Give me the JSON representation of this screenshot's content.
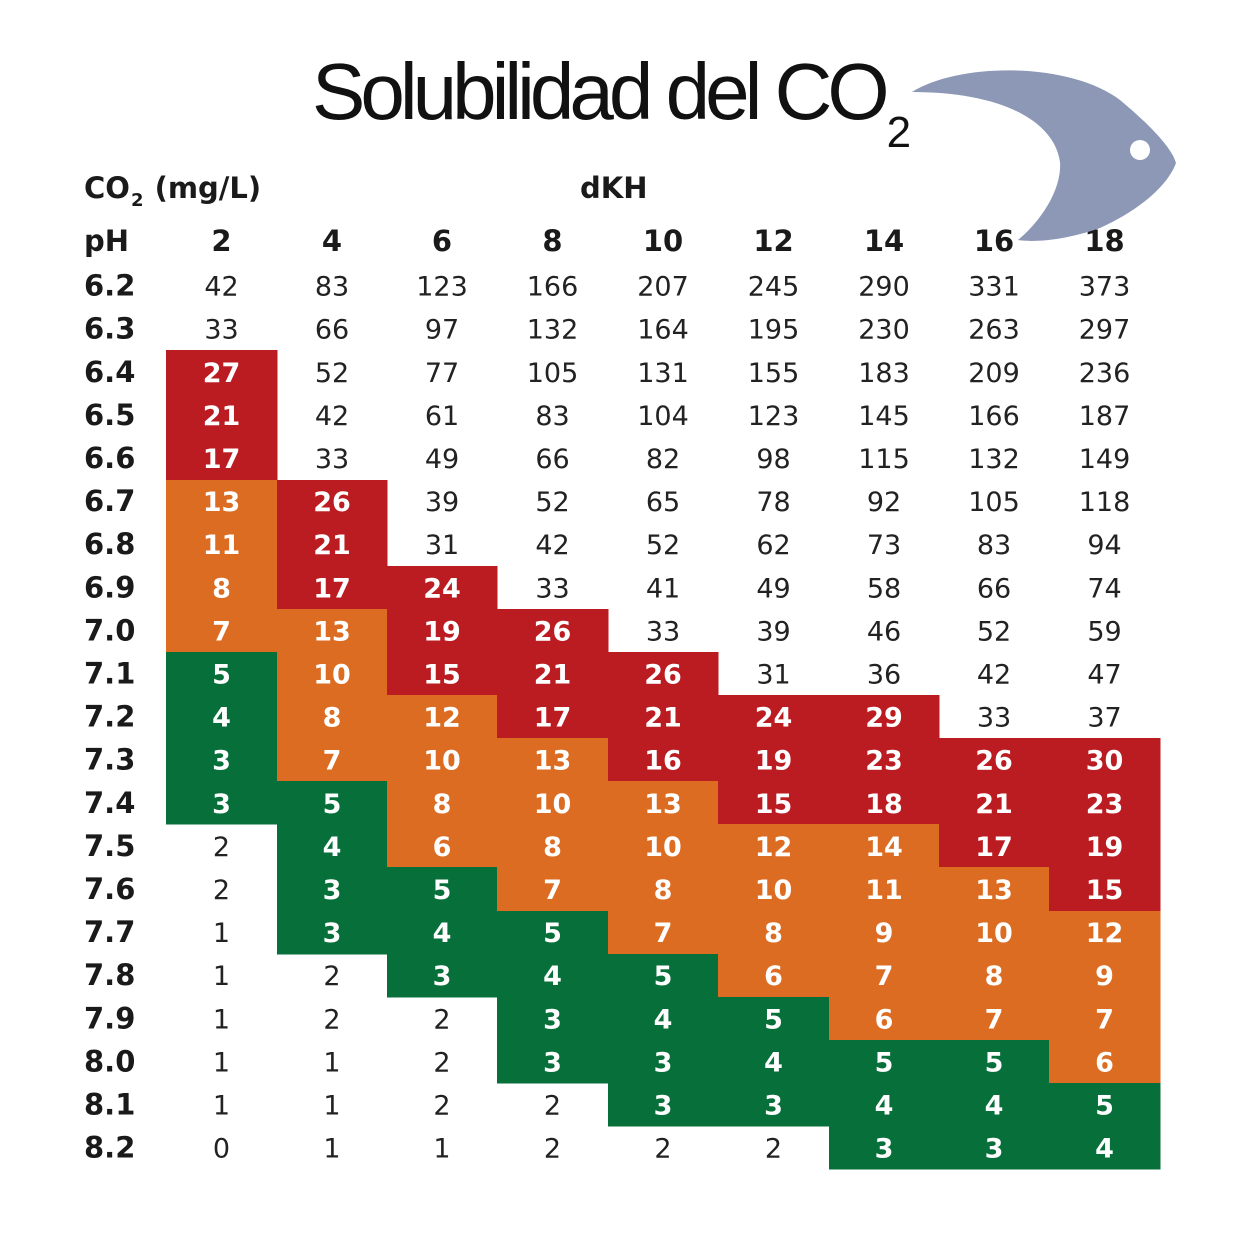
{
  "title": {
    "text": "Solubilidad del CO",
    "subscript": "2"
  },
  "headers": {
    "unit_prefix": "CO",
    "unit_sub": "2",
    "unit_suffix": " (mg/L)",
    "column_group": "dKH",
    "row_label": "pH"
  },
  "logo": {
    "icon": "fish-icon"
  },
  "colors": {
    "red": "#bb1c21",
    "orange": "#dc6c22",
    "green": "#07703a",
    "none": "#ffffff",
    "text_dark": "#222222",
    "text_light": "#ffffff",
    "fish": "#8c98b6"
  },
  "chart_data": {
    "type": "table",
    "title": "Solubilidad del CO2",
    "xlabel": "dKH",
    "ylabel": "pH",
    "unit": "CO2 (mg/L)",
    "columns": [
      "2",
      "4",
      "6",
      "8",
      "10",
      "12",
      "14",
      "16",
      "18"
    ],
    "rows": [
      "6.2",
      "6.3",
      "6.4",
      "6.5",
      "6.6",
      "6.7",
      "6.8",
      "6.9",
      "7.0",
      "7.1",
      "7.2",
      "7.3",
      "7.4",
      "7.5",
      "7.6",
      "7.7",
      "7.8",
      "7.9",
      "8.0",
      "8.1",
      "8.2"
    ],
    "values": [
      [
        42,
        83,
        123,
        166,
        207,
        245,
        290,
        331,
        373
      ],
      [
        33,
        66,
        97,
        132,
        164,
        195,
        230,
        263,
        297
      ],
      [
        27,
        52,
        77,
        105,
        131,
        155,
        183,
        209,
        236
      ],
      [
        21,
        42,
        61,
        83,
        104,
        123,
        145,
        166,
        187
      ],
      [
        17,
        33,
        49,
        66,
        82,
        98,
        115,
        132,
        149
      ],
      [
        13,
        26,
        39,
        52,
        65,
        78,
        92,
        105,
        118
      ],
      [
        11,
        21,
        31,
        42,
        52,
        62,
        73,
        83,
        94
      ],
      [
        8,
        17,
        24,
        33,
        41,
        49,
        58,
        66,
        74
      ],
      [
        7,
        13,
        19,
        26,
        33,
        39,
        46,
        52,
        59
      ],
      [
        5,
        10,
        15,
        21,
        26,
        31,
        36,
        42,
        47
      ],
      [
        4,
        8,
        12,
        17,
        21,
        24,
        29,
        33,
        37
      ],
      [
        3,
        7,
        10,
        13,
        16,
        19,
        23,
        26,
        30
      ],
      [
        3,
        5,
        8,
        10,
        13,
        15,
        18,
        21,
        23
      ],
      [
        2,
        4,
        6,
        8,
        10,
        12,
        14,
        17,
        19
      ],
      [
        2,
        3,
        5,
        7,
        8,
        10,
        11,
        13,
        15
      ],
      [
        1,
        3,
        4,
        5,
        7,
        8,
        9,
        10,
        12
      ],
      [
        1,
        2,
        3,
        4,
        5,
        6,
        7,
        8,
        9
      ],
      [
        1,
        2,
        2,
        3,
        4,
        5,
        6,
        7,
        7
      ],
      [
        1,
        1,
        2,
        3,
        3,
        4,
        5,
        5,
        6
      ],
      [
        1,
        1,
        2,
        2,
        3,
        3,
        4,
        4,
        5
      ],
      [
        0,
        1,
        1,
        2,
        2,
        2,
        3,
        3,
        4
      ]
    ],
    "zones": [
      [
        "none",
        "none",
        "none",
        "none",
        "none",
        "none",
        "none",
        "none",
        "none"
      ],
      [
        "none",
        "none",
        "none",
        "none",
        "none",
        "none",
        "none",
        "none",
        "none"
      ],
      [
        "red",
        "none",
        "none",
        "none",
        "none",
        "none",
        "none",
        "none",
        "none"
      ],
      [
        "red",
        "none",
        "none",
        "none",
        "none",
        "none",
        "none",
        "none",
        "none"
      ],
      [
        "red",
        "none",
        "none",
        "none",
        "none",
        "none",
        "none",
        "none",
        "none"
      ],
      [
        "orange",
        "red",
        "none",
        "none",
        "none",
        "none",
        "none",
        "none",
        "none"
      ],
      [
        "orange",
        "red",
        "none",
        "none",
        "none",
        "none",
        "none",
        "none",
        "none"
      ],
      [
        "orange",
        "red",
        "red",
        "none",
        "none",
        "none",
        "none",
        "none",
        "none"
      ],
      [
        "orange",
        "orange",
        "red",
        "red",
        "none",
        "none",
        "none",
        "none",
        "none"
      ],
      [
        "green",
        "orange",
        "red",
        "red",
        "red",
        "none",
        "none",
        "none",
        "none"
      ],
      [
        "green",
        "orange",
        "orange",
        "red",
        "red",
        "red",
        "red",
        "none",
        "none"
      ],
      [
        "green",
        "orange",
        "orange",
        "orange",
        "red",
        "red",
        "red",
        "red",
        "red"
      ],
      [
        "green",
        "green",
        "orange",
        "orange",
        "orange",
        "red",
        "red",
        "red",
        "red"
      ],
      [
        "none",
        "green",
        "orange",
        "orange",
        "orange",
        "orange",
        "orange",
        "red",
        "red"
      ],
      [
        "none",
        "green",
        "green",
        "orange",
        "orange",
        "orange",
        "orange",
        "orange",
        "red"
      ],
      [
        "none",
        "green",
        "green",
        "green",
        "orange",
        "orange",
        "orange",
        "orange",
        "orange"
      ],
      [
        "none",
        "none",
        "green",
        "green",
        "green",
        "orange",
        "orange",
        "orange",
        "orange"
      ],
      [
        "none",
        "none",
        "none",
        "green",
        "green",
        "green",
        "orange",
        "orange",
        "orange"
      ],
      [
        "none",
        "none",
        "none",
        "green",
        "green",
        "green",
        "green",
        "green",
        "orange"
      ],
      [
        "none",
        "none",
        "none",
        "none",
        "green",
        "green",
        "green",
        "green",
        "green"
      ],
      [
        "none",
        "none",
        "none",
        "none",
        "none",
        "none",
        "green",
        "green",
        "green"
      ]
    ]
  }
}
